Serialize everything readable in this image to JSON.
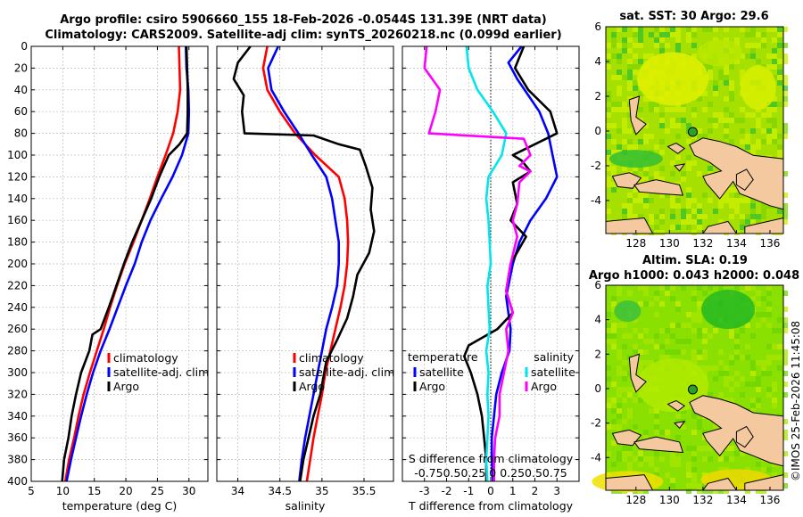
{
  "header": {
    "line1": "Argo profile: csiro 5906660_155 18-Feb-2026 -0.0544S 131.39E (NRT data)",
    "line2": "Climatology: CARS2009. Satellite-adj clim: synTS_20260218.nc (0.099d earlier)"
  },
  "credit": "©IMOS 25-Feb-2026 11:45:08",
  "colors": {
    "climatology": "#ff0000",
    "satellite": "#0000ff",
    "argo": "#000000",
    "sat_salinity": "#00e5ee",
    "argo_salinity": "#ff00ff",
    "land": "#f5c9a0",
    "sea_sst": "#a6e000",
    "sea_sla": "#8ae000"
  },
  "chart_data": [
    {
      "type": "line",
      "name": "temperature",
      "xlabel": "temperature (deg C)",
      "xlim": [
        5,
        33
      ],
      "ylim": [
        400,
        0
      ],
      "xticks": [
        "5",
        "10",
        "15",
        "20",
        "25",
        "30"
      ],
      "yticks": [
        "0",
        "20",
        "40",
        "60",
        "80",
        "100",
        "120",
        "140",
        "160",
        "180",
        "200",
        "220",
        "240",
        "260",
        "280",
        "300",
        "320",
        "340",
        "360",
        "380",
        "400"
      ],
      "grid": true,
      "legend": [
        "climatology",
        "satellite-adj. clim",
        "Argo"
      ],
      "series": [
        {
          "name": "climatology",
          "color": "#ff0000",
          "points": [
            [
              28.4,
              0
            ],
            [
              28.5,
              20
            ],
            [
              28.6,
              40
            ],
            [
              28.2,
              60
            ],
            [
              27.5,
              80
            ],
            [
              26.3,
              100
            ],
            [
              25.0,
              120
            ],
            [
              23.8,
              140
            ],
            [
              22.5,
              160
            ],
            [
              21.2,
              180
            ],
            [
              19.8,
              200
            ],
            [
              18.6,
              220
            ],
            [
              17.5,
              240
            ],
            [
              16.5,
              260
            ],
            [
              15.4,
              280
            ],
            [
              14.3,
              300
            ],
            [
              13.3,
              320
            ],
            [
              12.5,
              340
            ],
            [
              11.8,
              360
            ],
            [
              11.0,
              380
            ],
            [
              10.4,
              400
            ]
          ]
        },
        {
          "name": "satellite-adj. clim",
          "color": "#0000ff",
          "points": [
            [
              29.5,
              0
            ],
            [
              29.6,
              20
            ],
            [
              29.9,
              40
            ],
            [
              30.0,
              60
            ],
            [
              29.9,
              80
            ],
            [
              28.9,
              100
            ],
            [
              27.4,
              120
            ],
            [
              25.6,
              140
            ],
            [
              23.9,
              160
            ],
            [
              22.5,
              180
            ],
            [
              21.4,
              200
            ],
            [
              20.0,
              220
            ],
            [
              18.7,
              240
            ],
            [
              17.4,
              260
            ],
            [
              16.0,
              280
            ],
            [
              14.8,
              300
            ],
            [
              13.8,
              320
            ],
            [
              12.9,
              340
            ],
            [
              12.1,
              360
            ],
            [
              11.3,
              380
            ],
            [
              10.6,
              400
            ]
          ]
        },
        {
          "name": "Argo",
          "color": "#000000",
          "points": [
            [
              29.6,
              0
            ],
            [
              29.7,
              20
            ],
            [
              29.8,
              40
            ],
            [
              29.8,
              60
            ],
            [
              29.7,
              80
            ],
            [
              28.5,
              90
            ],
            [
              26.8,
              100
            ],
            [
              25.3,
              120
            ],
            [
              24.0,
              140
            ],
            [
              22.5,
              160
            ],
            [
              21.0,
              180
            ],
            [
              19.7,
              200
            ],
            [
              18.5,
              220
            ],
            [
              17.3,
              240
            ],
            [
              16.0,
              260
            ],
            [
              14.7,
              265
            ],
            [
              14.2,
              280
            ],
            [
              12.9,
              300
            ],
            [
              12.1,
              320
            ],
            [
              11.4,
              340
            ],
            [
              10.9,
              360
            ],
            [
              10.2,
              380
            ],
            [
              9.9,
              400
            ]
          ]
        }
      ]
    },
    {
      "type": "line",
      "name": "salinity",
      "xlabel": "salinity",
      "xlim": [
        33.75,
        35.85
      ],
      "ylim": [
        400,
        0
      ],
      "xticks": [
        "34",
        "34.5",
        "35",
        "35.5"
      ],
      "grid": true,
      "legend": [
        "climatology",
        "satellite-adj. clim",
        "Argo"
      ],
      "series": [
        {
          "name": "climatology",
          "color": "#ff0000",
          "points": [
            [
              34.35,
              0
            ],
            [
              34.3,
              20
            ],
            [
              34.35,
              40
            ],
            [
              34.5,
              60
            ],
            [
              34.68,
              80
            ],
            [
              34.92,
              100
            ],
            [
              35.2,
              120
            ],
            [
              35.27,
              140
            ],
            [
              35.3,
              160
            ],
            [
              35.31,
              180
            ],
            [
              35.3,
              200
            ],
            [
              35.27,
              220
            ],
            [
              35.22,
              240
            ],
            [
              35.16,
              260
            ],
            [
              35.1,
              280
            ],
            [
              35.04,
              300
            ],
            [
              35.0,
              320
            ],
            [
              34.95,
              340
            ],
            [
              34.9,
              360
            ],
            [
              34.86,
              380
            ],
            [
              34.82,
              400
            ]
          ]
        },
        {
          "name": "satellite-adj. clim",
          "color": "#0000ff",
          "points": [
            [
              34.48,
              0
            ],
            [
              34.36,
              20
            ],
            [
              34.4,
              40
            ],
            [
              34.55,
              60
            ],
            [
              34.72,
              80
            ],
            [
              34.88,
              100
            ],
            [
              35.05,
              120
            ],
            [
              35.12,
              140
            ],
            [
              35.16,
              160
            ],
            [
              35.2,
              180
            ],
            [
              35.2,
              200
            ],
            [
              35.18,
              220
            ],
            [
              35.12,
              240
            ],
            [
              35.05,
              260
            ],
            [
              35.0,
              280
            ],
            [
              34.95,
              300
            ],
            [
              34.9,
              320
            ],
            [
              34.85,
              340
            ],
            [
              34.8,
              360
            ],
            [
              34.76,
              380
            ],
            [
              34.73,
              400
            ]
          ]
        },
        {
          "name": "Argo",
          "color": "#000000",
          "points": [
            [
              34.15,
              0
            ],
            [
              34.0,
              15
            ],
            [
              33.95,
              30
            ],
            [
              34.07,
              45
            ],
            [
              34.05,
              60
            ],
            [
              34.08,
              80
            ],
            [
              34.9,
              82
            ],
            [
              35.2,
              90
            ],
            [
              35.45,
              95
            ],
            [
              35.52,
              110
            ],
            [
              35.6,
              130
            ],
            [
              35.58,
              150
            ],
            [
              35.62,
              170
            ],
            [
              35.56,
              190
            ],
            [
              35.42,
              210
            ],
            [
              35.37,
              230
            ],
            [
              35.3,
              250
            ],
            [
              35.18,
              270
            ],
            [
              35.05,
              290
            ],
            [
              34.98,
              320
            ],
            [
              34.9,
              340
            ],
            [
              34.84,
              360
            ],
            [
              34.78,
              380
            ],
            [
              34.74,
              400
            ]
          ]
        }
      ]
    },
    {
      "type": "line",
      "name": "difference",
      "xlabel": "T difference from climatology",
      "top_xlabel": "S difference from climatology",
      "top_xticks": "-0.750.50.25 0 0.250.50.75",
      "xlim": [
        -4.0,
        4.0
      ],
      "ylim": [
        400,
        0
      ],
      "xticks": [
        "-3",
        "-2",
        "-1",
        "0",
        "1",
        "2",
        "3"
      ],
      "grid": true,
      "legend_left_title": "temperature",
      "legend_right_title": "salinity",
      "legend_left": [
        "satellite",
        "Argo"
      ],
      "legend_right": [
        "satellite",
        "Argo"
      ],
      "series": [
        {
          "name": "T satellite",
          "color": "#0000ff",
          "points": [
            [
              1.4,
              0
            ],
            [
              0.8,
              15
            ],
            [
              1.2,
              30
            ],
            [
              1.7,
              45
            ],
            [
              2.2,
              60
            ],
            [
              2.6,
              80
            ],
            [
              2.8,
              100
            ],
            [
              3.0,
              120
            ],
            [
              2.5,
              140
            ],
            [
              1.8,
              160
            ],
            [
              1.3,
              180
            ],
            [
              1.0,
              200
            ],
            [
              0.7,
              230
            ],
            [
              0.9,
              260
            ],
            [
              0.85,
              280
            ],
            [
              0.5,
              300
            ],
            [
              0.25,
              320
            ],
            [
              0.15,
              340
            ],
            [
              0.05,
              360
            ],
            [
              0.05,
              380
            ],
            [
              0.1,
              400
            ]
          ]
        },
        {
          "name": "T Argo",
          "color": "#000000",
          "points": [
            [
              1.5,
              0
            ],
            [
              1.1,
              20
            ],
            [
              1.7,
              40
            ],
            [
              2.7,
              60
            ],
            [
              3.0,
              80
            ],
            [
              1.5,
              95
            ],
            [
              1.0,
              100
            ],
            [
              1.4,
              105
            ],
            [
              1.8,
              115
            ],
            [
              1.0,
              125
            ],
            [
              1.2,
              145
            ],
            [
              0.9,
              160
            ],
            [
              1.6,
              175
            ],
            [
              0.9,
              200
            ],
            [
              0.7,
              225
            ],
            [
              1.0,
              245
            ],
            [
              0.3,
              260
            ],
            [
              -1.0,
              275
            ],
            [
              -1.2,
              285
            ],
            [
              -0.9,
              300
            ],
            [
              -0.6,
              320
            ],
            [
              -0.4,
              340
            ],
            [
              -0.3,
              360
            ],
            [
              -0.2,
              380
            ],
            [
              -0.2,
              400
            ]
          ]
        },
        {
          "name": "S satellite",
          "color": "#00e5ee",
          "points": [
            [
              -1.1,
              0
            ],
            [
              -1.0,
              20
            ],
            [
              -0.6,
              40
            ],
            [
              0.1,
              60
            ],
            [
              0.7,
              80
            ],
            [
              0.5,
              100
            ],
            [
              -0.1,
              120
            ],
            [
              -0.2,
              140
            ],
            [
              -0.1,
              160
            ],
            [
              -0.05,
              180
            ],
            [
              0.0,
              200
            ],
            [
              -0.15,
              220
            ],
            [
              -0.1,
              240
            ],
            [
              -0.05,
              260
            ],
            [
              -0.2,
              280
            ],
            [
              -0.1,
              300
            ],
            [
              -0.15,
              320
            ],
            [
              -0.1,
              340
            ],
            [
              -0.15,
              360
            ],
            [
              -0.2,
              380
            ],
            [
              -0.15,
              400
            ]
          ]
        },
        {
          "name": "S Argo",
          "color": "#ff00ff",
          "points": [
            [
              -2.9,
              0
            ],
            [
              -3.0,
              20
            ],
            [
              -2.3,
              40
            ],
            [
              -2.5,
              60
            ],
            [
              -2.8,
              80
            ],
            [
              1.5,
              85
            ],
            [
              1.8,
              100
            ],
            [
              1.3,
              110
            ],
            [
              1.8,
              115
            ],
            [
              1.3,
              125
            ],
            [
              1.2,
              145
            ],
            [
              1.0,
              160
            ],
            [
              1.2,
              175
            ],
            [
              0.9,
              200
            ],
            [
              0.7,
              225
            ],
            [
              1.0,
              245
            ],
            [
              0.7,
              260
            ],
            [
              0.8,
              280
            ],
            [
              0.6,
              300
            ],
            [
              0.4,
              320
            ],
            [
              0.4,
              340
            ],
            [
              0.2,
              360
            ],
            [
              0.15,
              380
            ],
            [
              0.15,
              400
            ]
          ]
        }
      ]
    },
    {
      "type": "heatmap",
      "name": "sst_map",
      "title": "sat. SST: 30 Argo: 29.6",
      "xlim": [
        126.2,
        136.8
      ],
      "ylim": [
        -5.9,
        6.0
      ],
      "xticks": [
        "128",
        "130",
        "132",
        "134",
        "136"
      ],
      "yticks": [
        "6",
        "4",
        "2",
        "0",
        "-2",
        "-4"
      ],
      "argo_position": [
        131.39,
        -0.0544
      ]
    },
    {
      "type": "heatmap",
      "name": "sla_map",
      "title": "Altim. SLA: 0.19",
      "subtitle": "Argo h1000: 0.043 h2000: 0.048",
      "xlim": [
        126.2,
        136.8
      ],
      "ylim": [
        -5.9,
        6.0
      ],
      "xticks": [
        "128",
        "130",
        "132",
        "134",
        "136"
      ],
      "yticks": [
        "6",
        "4",
        "2",
        "0",
        "-2",
        "-4"
      ],
      "argo_position": [
        131.39,
        -0.0544
      ]
    }
  ]
}
